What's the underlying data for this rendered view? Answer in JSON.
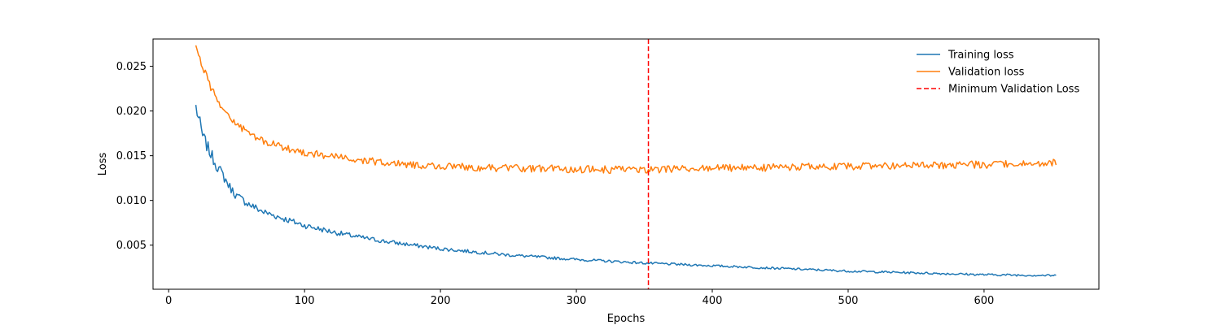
{
  "chart_data": {
    "type": "line",
    "title": "",
    "xlabel": "Epochs",
    "ylabel": "Loss",
    "xlim": [
      -11.5,
      684.5
    ],
    "ylim": [
      7e-05,
      0.02805
    ],
    "x_ticks": [
      0,
      100,
      200,
      300,
      400,
      500,
      600
    ],
    "y_ticks": [
      0.005,
      0.01,
      0.015,
      0.02,
      0.025
    ],
    "y_tick_labels": [
      "0.005",
      "0.010",
      "0.015",
      "0.020",
      "0.025"
    ],
    "grid": false,
    "legend_position": "top-right",
    "epoch_range": [
      20,
      653
    ],
    "series": [
      {
        "name": "Training loss",
        "color": "#1f77b4",
        "style": "solid",
        "x": [
          20,
          25,
          30,
          35,
          40,
          45,
          50,
          60,
          70,
          80,
          90,
          100,
          120,
          140,
          160,
          180,
          200,
          250,
          300,
          350,
          400,
          450,
          500,
          550,
          600,
          653
        ],
        "y": [
          0.0205,
          0.0172,
          0.0155,
          0.014,
          0.0128,
          0.0115,
          0.0105,
          0.0095,
          0.0087,
          0.0082,
          0.0077,
          0.0072,
          0.0065,
          0.0059,
          0.0054,
          0.005,
          0.0046,
          0.0039,
          0.0034,
          0.003,
          0.0027,
          0.0024,
          0.0021,
          0.0019,
          0.0017,
          0.0016
        ]
      },
      {
        "name": "Validation loss",
        "color": "#ff7f0e",
        "style": "solid",
        "x": [
          20,
          25,
          30,
          35,
          40,
          45,
          50,
          60,
          70,
          80,
          90,
          100,
          120,
          140,
          160,
          180,
          200,
          250,
          300,
          353,
          400,
          450,
          500,
          550,
          600,
          653
        ],
        "y": [
          0.027,
          0.025,
          0.023,
          0.0215,
          0.0203,
          0.0193,
          0.0185,
          0.0174,
          0.0166,
          0.0161,
          0.0157,
          0.0154,
          0.0149,
          0.0145,
          0.0142,
          0.014,
          0.0138,
          0.0136,
          0.0135,
          0.0134,
          0.0136,
          0.0137,
          0.0138,
          0.0139,
          0.014,
          0.0142
        ]
      },
      {
        "name": "Minimum Validation Loss",
        "color": "#ff0000",
        "style": "dashed",
        "vline_x": 353
      }
    ]
  }
}
